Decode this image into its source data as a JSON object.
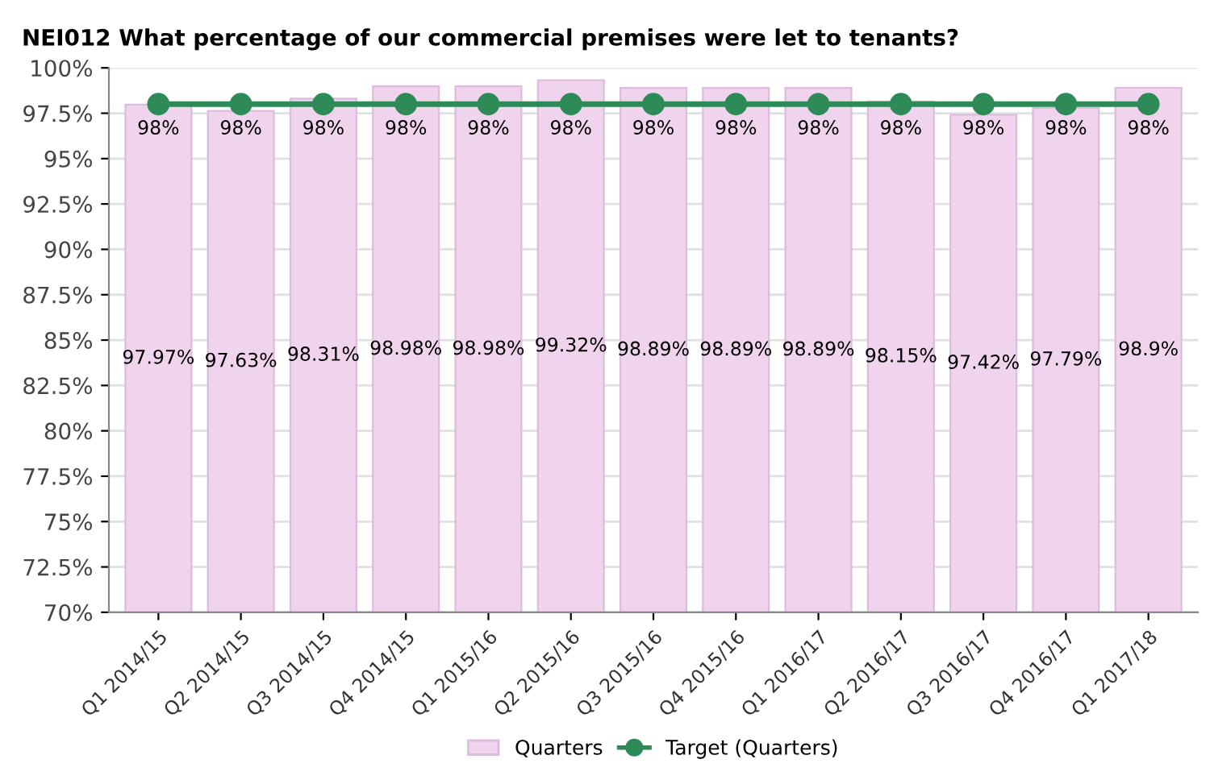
{
  "chart_data": {
    "type": "bar",
    "title": "NEI012 What percentage of our commercial premises were let to tenants?",
    "categories": [
      "Q1 2014/15",
      "Q2 2014/15",
      "Q3 2014/15",
      "Q4 2014/15",
      "Q1 2015/16",
      "Q2 2015/16",
      "Q3 2015/16",
      "Q4 2015/16",
      "Q1 2016/17",
      "Q2 2016/17",
      "Q3 2016/17",
      "Q4 2016/17",
      "Q1 2017/18"
    ],
    "series": [
      {
        "name": "Quarters",
        "color": "#f0d4ee",
        "values": [
          97.97,
          97.63,
          98.31,
          98.98,
          98.98,
          99.32,
          98.89,
          98.89,
          98.89,
          98.15,
          97.42,
          97.79,
          98.9
        ],
        "value_labels": [
          "97.97%",
          "97.63%",
          "98.31%",
          "98.98%",
          "98.98%",
          "99.32%",
          "98.89%",
          "98.89%",
          "98.89%",
          "98.15%",
          "97.42%",
          "97.79%",
          "98.9%"
        ]
      },
      {
        "name": "Target (Quarters)",
        "type": "line",
        "color": "#2e8b57",
        "marker": "circle",
        "values": [
          98,
          98,
          98,
          98,
          98,
          98,
          98,
          98,
          98,
          98,
          98,
          98,
          98
        ],
        "value_labels": [
          "98%",
          "98%",
          "98%",
          "98%",
          "98%",
          "98%",
          "98%",
          "98%",
          "98%",
          "98%",
          "98%",
          "98%",
          "98%"
        ]
      }
    ],
    "ylim": [
      70,
      100
    ],
    "yticks": [
      {
        "value": 70,
        "label": "70%"
      },
      {
        "value": 72.5,
        "label": "72.5%"
      },
      {
        "value": 75,
        "label": "75%"
      },
      {
        "value": 77.5,
        "label": "77.5%"
      },
      {
        "value": 80,
        "label": "80%"
      },
      {
        "value": 82.5,
        "label": "82.5%"
      },
      {
        "value": 85,
        "label": "85%"
      },
      {
        "value": 87.5,
        "label": "87.5%"
      },
      {
        "value": 90,
        "label": "90%"
      },
      {
        "value": 92.5,
        "label": "92.5%"
      },
      {
        "value": 95,
        "label": "95%"
      },
      {
        "value": 97.5,
        "label": "97.5%"
      },
      {
        "value": 100,
        "label": "100%"
      }
    ],
    "grid": "y",
    "legend": "bottom"
  }
}
